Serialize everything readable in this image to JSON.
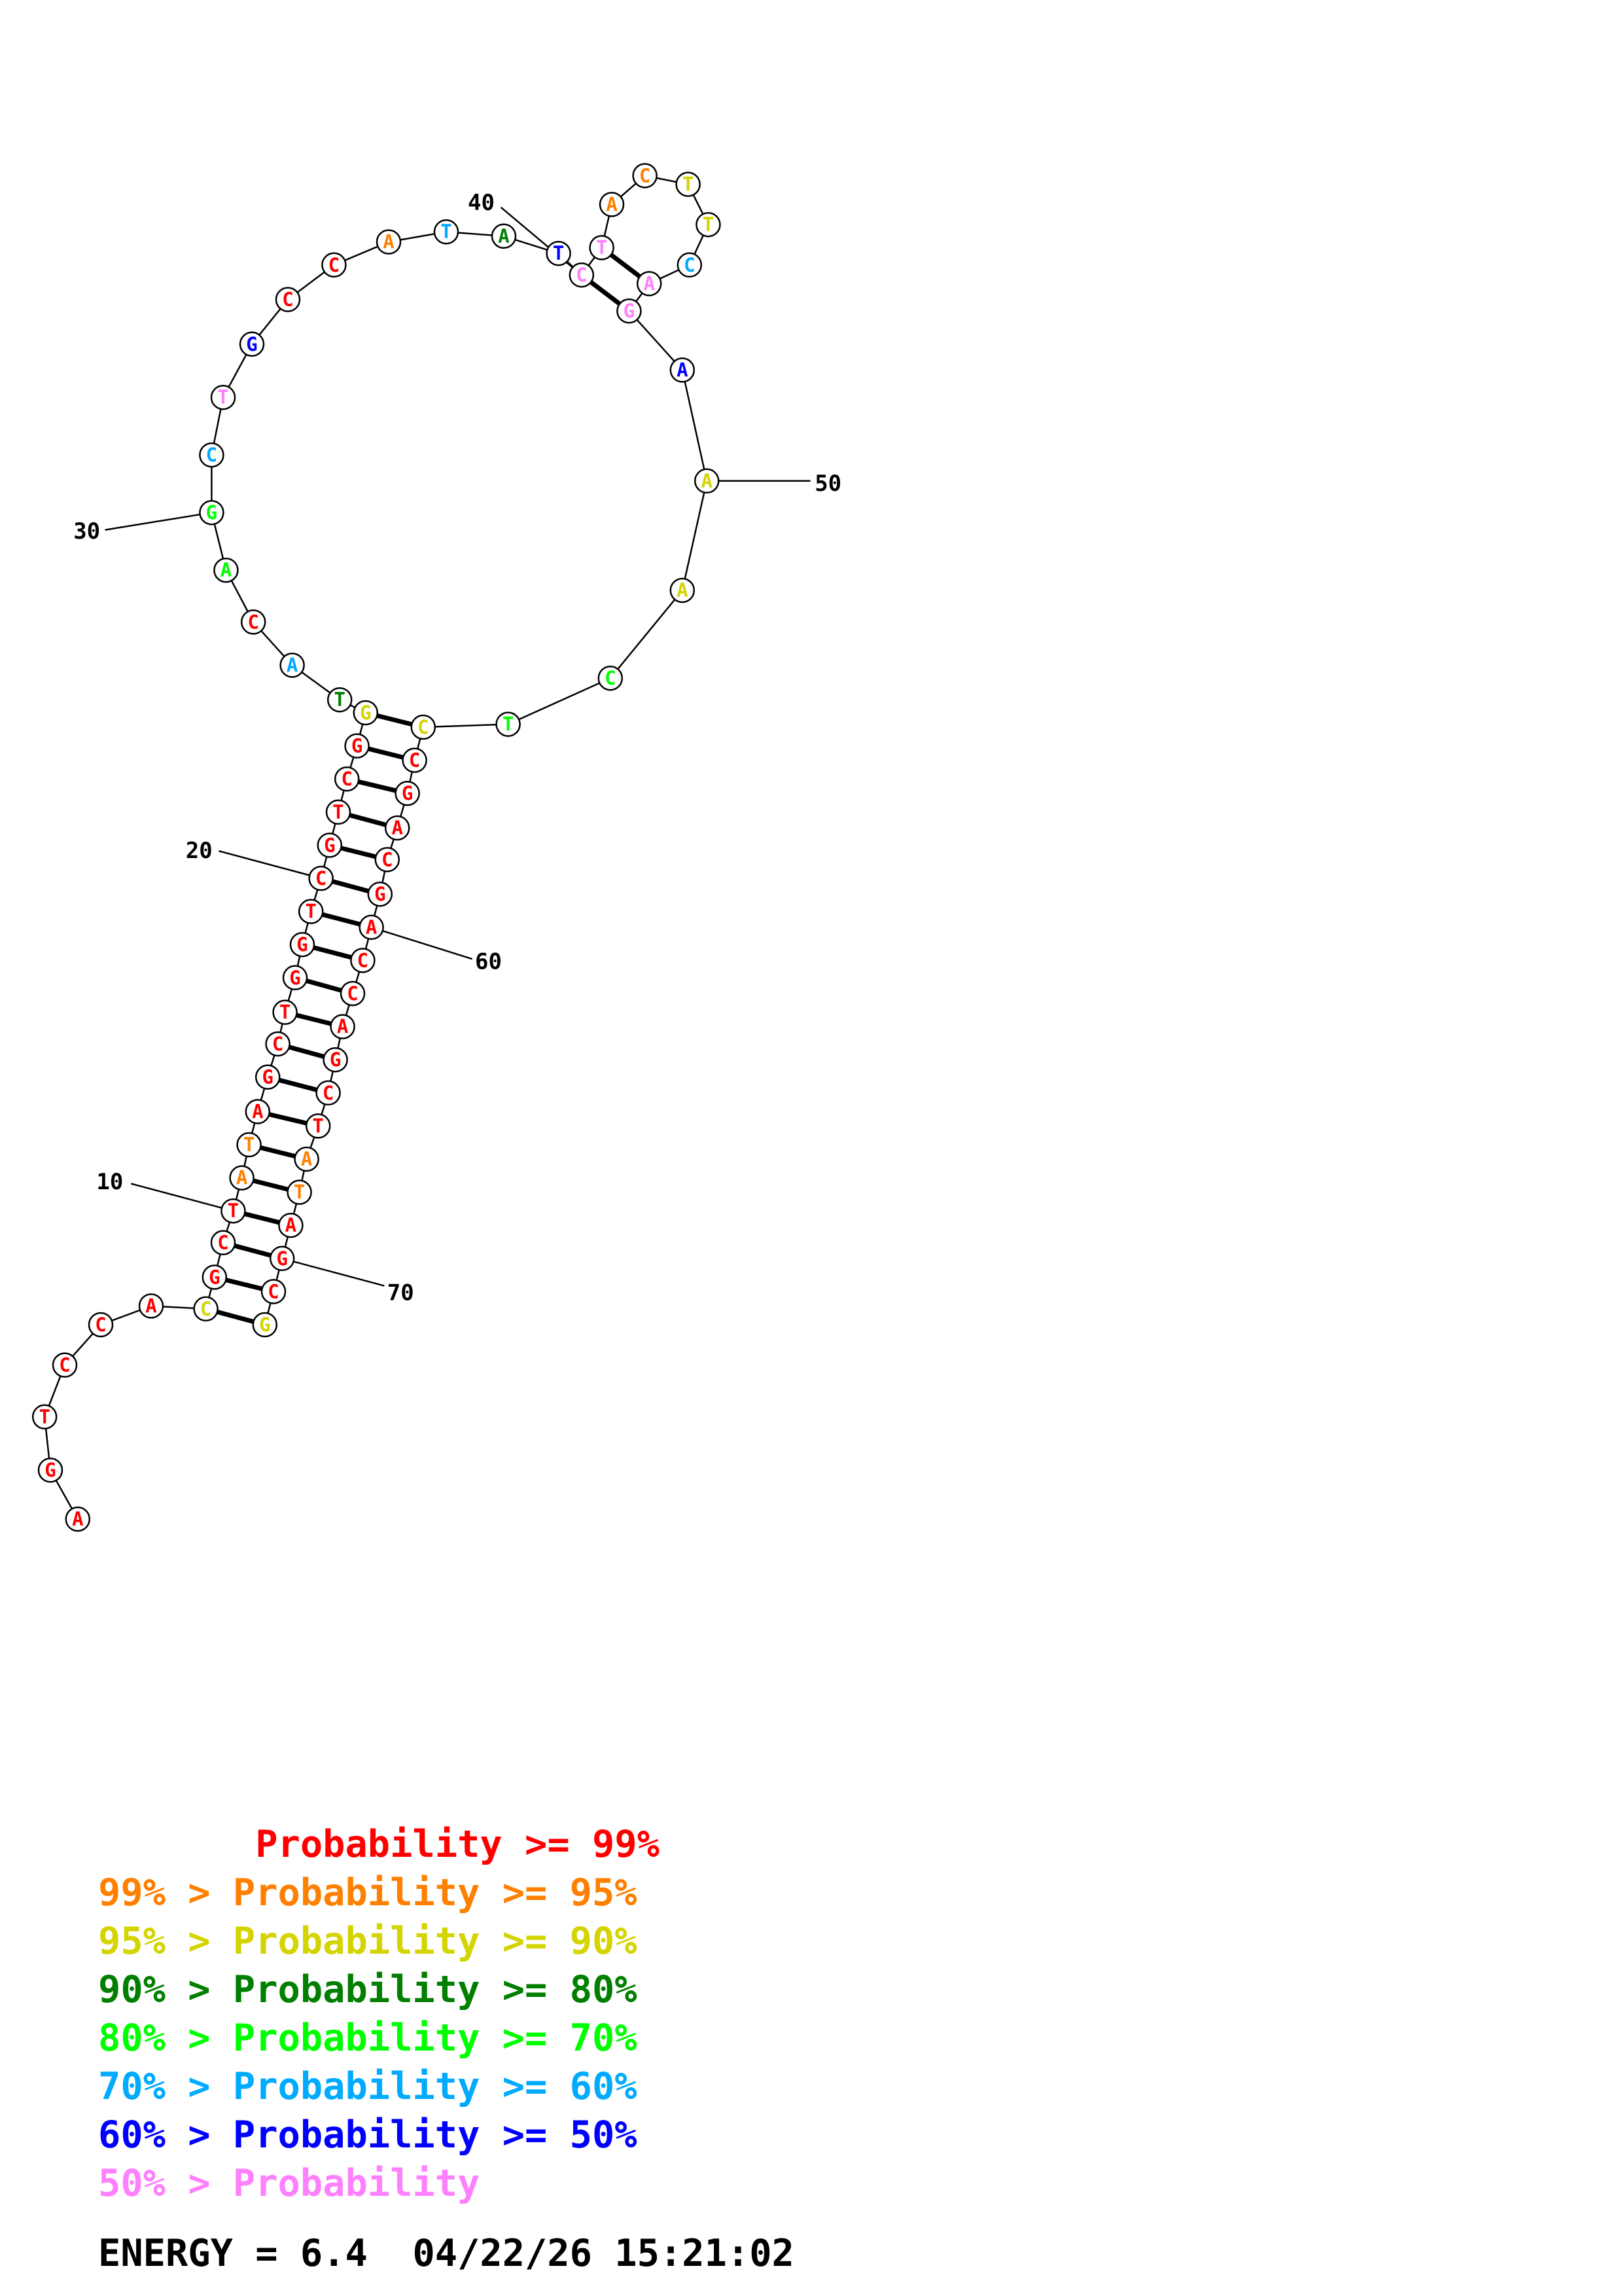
{
  "colors": {
    "p99": "#ff0000",
    "p95": "#ff8000",
    "p90": "#d4d400",
    "p80": "#007f00",
    "p70": "#00ff00",
    "p60": "#00aaff",
    "p50": "#0000ff",
    "plow": "#ff80ff"
  },
  "sequence": [
    {
      "n": 1,
      "b": "A",
      "p": "p99"
    },
    {
      "n": 2,
      "b": "G",
      "p": "p99"
    },
    {
      "n": 3,
      "b": "T",
      "p": "p99"
    },
    {
      "n": 4,
      "b": "C",
      "p": "p99"
    },
    {
      "n": 5,
      "b": "C",
      "p": "p99"
    },
    {
      "n": 6,
      "b": "A",
      "p": "p99"
    },
    {
      "n": 7,
      "b": "C",
      "p": "p90"
    },
    {
      "n": 8,
      "b": "G",
      "p": "p99"
    },
    {
      "n": 9,
      "b": "C",
      "p": "p99"
    },
    {
      "n": 10,
      "b": "T",
      "p": "p99"
    },
    {
      "n": 11,
      "b": "A",
      "p": "p95"
    },
    {
      "n": 12,
      "b": "T",
      "p": "p95"
    },
    {
      "n": 13,
      "b": "A",
      "p": "p99"
    },
    {
      "n": 14,
      "b": "G",
      "p": "p99"
    },
    {
      "n": 15,
      "b": "C",
      "p": "p99"
    },
    {
      "n": 16,
      "b": "T",
      "p": "p99"
    },
    {
      "n": 17,
      "b": "G",
      "p": "p99"
    },
    {
      "n": 18,
      "b": "G",
      "p": "p99"
    },
    {
      "n": 19,
      "b": "T",
      "p": "p99"
    },
    {
      "n": 20,
      "b": "C",
      "p": "p99"
    },
    {
      "n": 21,
      "b": "G",
      "p": "p99"
    },
    {
      "n": 22,
      "b": "T",
      "p": "p99"
    },
    {
      "n": 23,
      "b": "C",
      "p": "p99"
    },
    {
      "n": 24,
      "b": "G",
      "p": "p99"
    },
    {
      "n": 25,
      "b": "G",
      "p": "p90"
    },
    {
      "n": 26,
      "b": "T",
      "p": "p80"
    },
    {
      "n": 27,
      "b": "A",
      "p": "p60"
    },
    {
      "n": 28,
      "b": "C",
      "p": "p99"
    },
    {
      "n": 29,
      "b": "A",
      "p": "p70"
    },
    {
      "n": 30,
      "b": "G",
      "p": "p70"
    },
    {
      "n": 31,
      "b": "C",
      "p": "p60"
    },
    {
      "n": 32,
      "b": "T",
      "p": "plow"
    },
    {
      "n": 33,
      "b": "G",
      "p": "p50"
    },
    {
      "n": 34,
      "b": "C",
      "p": "p99"
    },
    {
      "n": 35,
      "b": "C",
      "p": "p99"
    },
    {
      "n": 36,
      "b": "A",
      "p": "p95"
    },
    {
      "n": 37,
      "b": "T",
      "p": "p60"
    },
    {
      "n": 38,
      "b": "A",
      "p": "p80"
    },
    {
      "n": 39,
      "b": "T",
      "p": "p50"
    },
    {
      "n": 40,
      "b": "C",
      "p": "plow"
    },
    {
      "n": 41,
      "b": "T",
      "p": "plow"
    },
    {
      "n": 42,
      "b": "A",
      "p": "p95"
    },
    {
      "n": 43,
      "b": "C",
      "p": "p95"
    },
    {
      "n": 44,
      "b": "T",
      "p": "p90"
    },
    {
      "n": 45,
      "b": "T",
      "p": "p90"
    },
    {
      "n": 46,
      "b": "C",
      "p": "p60"
    },
    {
      "n": 47,
      "b": "A",
      "p": "plow"
    },
    {
      "n": 48,
      "b": "G",
      "p": "plow"
    },
    {
      "n": 49,
      "b": "A",
      "p": "p50"
    },
    {
      "n": 50,
      "b": "A",
      "p": "p90"
    },
    {
      "n": 51,
      "b": "A",
      "p": "p90"
    },
    {
      "n": 52,
      "b": "C",
      "p": "p70"
    },
    {
      "n": 53,
      "b": "T",
      "p": "p70"
    },
    {
      "n": 54,
      "b": "C",
      "p": "p90"
    },
    {
      "n": 55,
      "b": "C",
      "p": "p99"
    },
    {
      "n": 56,
      "b": "G",
      "p": "p99"
    },
    {
      "n": 57,
      "b": "A",
      "p": "p99"
    },
    {
      "n": 58,
      "b": "C",
      "p": "p99"
    },
    {
      "n": 59,
      "b": "G",
      "p": "p99"
    },
    {
      "n": 60,
      "b": "A",
      "p": "p99"
    },
    {
      "n": 61,
      "b": "C",
      "p": "p99"
    },
    {
      "n": 62,
      "b": "C",
      "p": "p99"
    },
    {
      "n": 63,
      "b": "A",
      "p": "p99"
    },
    {
      "n": 64,
      "b": "G",
      "p": "p99"
    },
    {
      "n": 65,
      "b": "C",
      "p": "p99"
    },
    {
      "n": 66,
      "b": "T",
      "p": "p99"
    },
    {
      "n": 67,
      "b": "A",
      "p": "p95"
    },
    {
      "n": 68,
      "b": "T",
      "p": "p95"
    },
    {
      "n": 69,
      "b": "A",
      "p": "p99"
    },
    {
      "n": 70,
      "b": "G",
      "p": "p99"
    },
    {
      "n": 71,
      "b": "C",
      "p": "p99"
    },
    {
      "n": 72,
      "b": "G",
      "p": "p90"
    }
  ],
  "pairs": [
    [
      7,
      72
    ],
    [
      8,
      71
    ],
    [
      9,
      70
    ],
    [
      10,
      69
    ],
    [
      11,
      68
    ],
    [
      12,
      67
    ],
    [
      13,
      66
    ],
    [
      14,
      65
    ],
    [
      15,
      64
    ],
    [
      16,
      63
    ],
    [
      17,
      62
    ],
    [
      18,
      61
    ],
    [
      19,
      60
    ],
    [
      20,
      59
    ],
    [
      21,
      58
    ],
    [
      22,
      57
    ],
    [
      23,
      56
    ],
    [
      24,
      55
    ],
    [
      25,
      54
    ],
    [
      40,
      48
    ],
    [
      41,
      47
    ]
  ],
  "tick_labels": [
    {
      "n": 10,
      "text": "10"
    },
    {
      "n": 20,
      "text": "20"
    },
    {
      "n": 30,
      "text": "30"
    },
    {
      "n": 40,
      "text": "40"
    },
    {
      "n": 50,
      "text": "50"
    },
    {
      "n": 60,
      "text": "60"
    },
    {
      "n": 70,
      "text": "70"
    }
  ],
  "legend": [
    {
      "text": "       Probability >= 99%",
      "p": "p99"
    },
    {
      "text": "99% > Probability >= 95%",
      "p": "p95"
    },
    {
      "text": "95% > Probability >= 90%",
      "p": "p90"
    },
    {
      "text": "90% > Probability >= 80%",
      "p": "p80"
    },
    {
      "text": "80% > Probability >= 70%",
      "p": "p70"
    },
    {
      "text": "70% > Probability >= 60%",
      "p": "p60"
    },
    {
      "text": "60% > Probability >= 50%",
      "p": "p50"
    },
    {
      "text": "50% > Probability",
      "p": "plow"
    }
  ],
  "footer": {
    "energy_label": "ENERGY = 6.4",
    "timestamp": "04/22/26 15:21:02"
  }
}
